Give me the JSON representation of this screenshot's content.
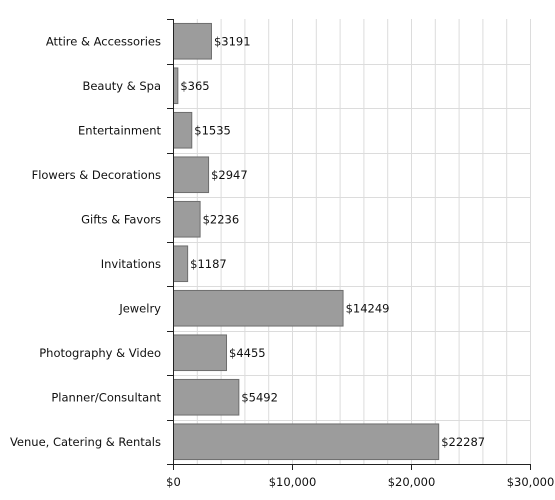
{
  "chart_data": {
    "type": "bar",
    "orientation": "horizontal",
    "categories": [
      "Attire & Accessories",
      "Beauty & Spa",
      "Entertainment",
      "Flowers & Decorations",
      "Gifts & Favors",
      "Invitations",
      "Jewelry",
      "Photography & Video",
      "Planner/Consultant",
      "Venue, Catering & Rentals"
    ],
    "values": [
      3191,
      365,
      1535,
      2947,
      2236,
      1187,
      14249,
      4455,
      5492,
      22287
    ],
    "value_labels": [
      "$3191",
      "$365",
      "$1535",
      "$2947",
      "$2236",
      "$1187",
      "$14249",
      "$4455",
      "$5492",
      "$22287"
    ],
    "xlim": [
      0,
      30000
    ],
    "x_ticks": [
      0,
      10000,
      20000,
      30000
    ],
    "x_tick_labels": [
      "$0",
      "$10,000",
      "$20,000",
      "$30,000"
    ],
    "grid": true,
    "title": "",
    "xlabel": "",
    "ylabel": "",
    "colors": {
      "bar_fill": "#9c9c9c",
      "bar_stroke": "#6e6e6e",
      "grid": "#dcdcdc",
      "axis": "#222222"
    }
  }
}
